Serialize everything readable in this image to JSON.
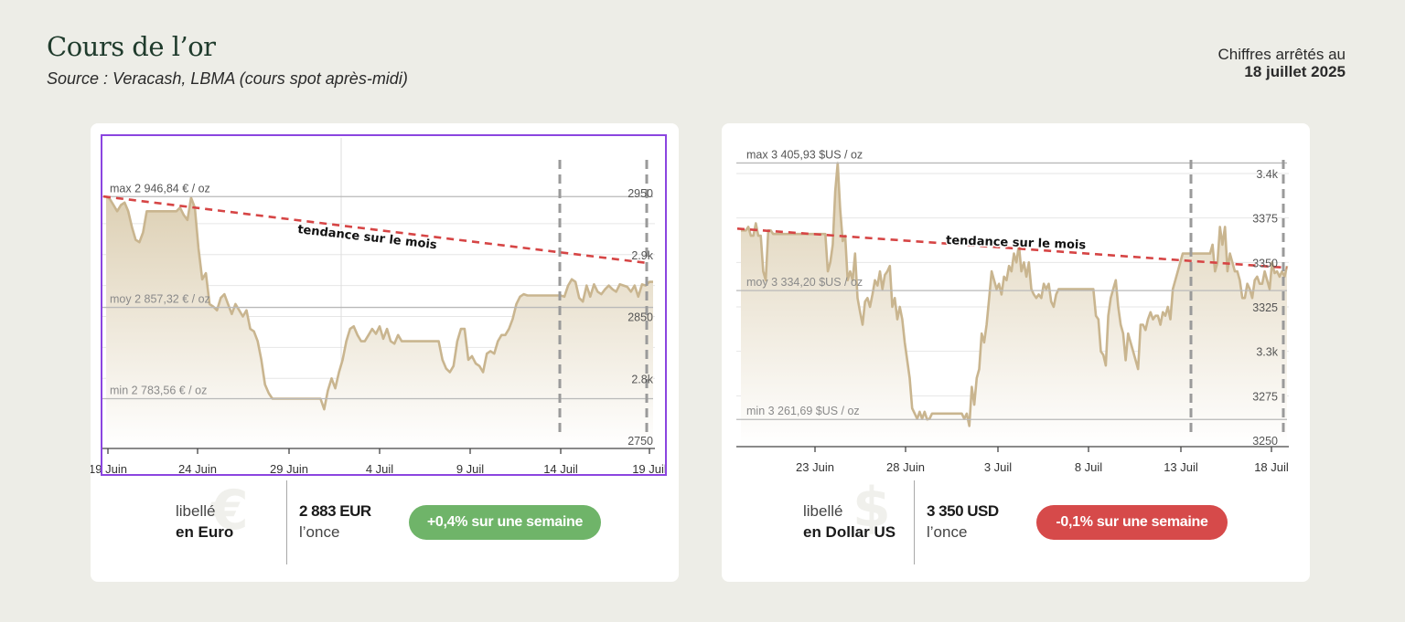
{
  "header": {
    "title": "Cours de l’or",
    "source": "Source : Veracash, LBMA (cours spot après-midi)",
    "date_line1": "Chiffres arrêtés au",
    "date_line2": "18 juillet 2025"
  },
  "colors": {
    "background": "#edede7",
    "line": "#c9b58f",
    "area_top": "#ddd0b4",
    "trend": "#d64545",
    "badge_up": "#6fb469",
    "badge_down": "#d64a4a",
    "selection_frame": "#8b45e0"
  },
  "chart_data": [
    {
      "type": "area",
      "currency": "EUR",
      "x_tick_labels": [
        "19 Juin",
        "24 Juin",
        "29 Juin",
        "4 Juil",
        "9 Juil",
        "14 Juil",
        "19 Juil"
      ],
      "y_tick_labels": [
        "2950",
        "2.9k",
        "2850",
        "2.8k",
        "2750"
      ],
      "ylim": [
        2750,
        2955
      ],
      "annotations": {
        "max": "max 2 946,84 € / oz",
        "moy": "moy 2 857,32 € / oz",
        "min": "min 2 783,56 € / oz",
        "trend": "tendance sur le mois"
      },
      "reference_values": {
        "max": 2946.84,
        "moy": 2857.32,
        "min": 2783.56
      },
      "x_start": "2025-06-19",
      "values": [
        2946.8,
        2945,
        2940,
        2935,
        2940,
        2942,
        2935,
        2922,
        2912,
        2910,
        2918,
        2935,
        2935,
        2935,
        2935,
        2935,
        2935,
        2935,
        2935,
        2935,
        2938,
        2932,
        2928,
        2946,
        2938,
        2905,
        2880,
        2885,
        2860,
        2858,
        2855,
        2865,
        2868,
        2860,
        2852,
        2860,
        2855,
        2850,
        2855,
        2840,
        2838,
        2830,
        2815,
        2795,
        2788,
        2783.6,
        2783.6,
        2783.6,
        2783.6,
        2783.6,
        2783.6,
        2783.6,
        2783.6,
        2783.6,
        2783.6,
        2783.6,
        2783.6,
        2783.6,
        2783.6,
        2775,
        2790,
        2800,
        2792,
        2805,
        2815,
        2830,
        2840,
        2842,
        2835,
        2830,
        2830,
        2835,
        2840,
        2836,
        2842,
        2832,
        2840,
        2830,
        2828,
        2835,
        2830,
        2830,
        2830,
        2830,
        2830,
        2830,
        2830,
        2830,
        2830,
        2830,
        2830,
        2815,
        2808,
        2805,
        2810,
        2830,
        2840,
        2840,
        2815,
        2818,
        2812,
        2810,
        2805,
        2820,
        2822,
        2820,
        2830,
        2835,
        2835,
        2840,
        2848,
        2860,
        2866,
        2868,
        2867,
        2867,
        2867,
        2867,
        2867,
        2867,
        2867,
        2867,
        2867,
        2867,
        2866,
        2875,
        2880,
        2878,
        2865,
        2862,
        2875,
        2866,
        2876,
        2870,
        2868,
        2872,
        2875,
        2872,
        2870,
        2876,
        2875,
        2874,
        2870,
        2875,
        2866,
        2876,
        2875,
        2878,
        2878
      ]
    },
    {
      "type": "area",
      "currency": "USD",
      "x_tick_labels": [
        "23 Juin",
        "28 Juin",
        "3 Juil",
        "8 Juil",
        "13 Juil",
        "18 Juil"
      ],
      "y_tick_labels": [
        "3.4k",
        "3375",
        "3350",
        "3325",
        "3.3k",
        "3275",
        "3250"
      ],
      "ylim": [
        3250,
        3410
      ],
      "annotations": {
        "max": "max 3 405,93 $US / oz",
        "moy": "moy 3 334,20 $US / oz",
        "min": "min 3 261,69 $US / oz",
        "trend": "tendance sur le mois"
      },
      "reference_values": {
        "max": 3405.93,
        "moy": 3334.2,
        "min": 3261.69
      },
      "x_start": "2025-06-18",
      "values": [
        3368,
        3368,
        3368,
        3370,
        3365,
        3365,
        3372,
        3365,
        3365,
        3345,
        3340,
        3368,
        3368,
        3366,
        3366,
        3366,
        3366,
        3366,
        3366,
        3366,
        3366,
        3366,
        3366,
        3366,
        3366,
        3366,
        3366,
        3366,
        3366,
        3366,
        3366,
        3366,
        3366,
        3366,
        3366,
        3345,
        3350,
        3360,
        3390,
        3405.9,
        3380,
        3362,
        3365,
        3340,
        3345,
        3340,
        3355,
        3330,
        3322,
        3315,
        3328,
        3330,
        3325,
        3332,
        3340,
        3337,
        3345,
        3335,
        3343,
        3345,
        3348,
        3325,
        3330,
        3318,
        3325,
        3318,
        3305,
        3295,
        3285,
        3268,
        3265,
        3262,
        3266,
        3262,
        3266,
        3261.7,
        3262,
        3265,
        3265,
        3265,
        3265,
        3265,
        3265,
        3265,
        3265,
        3265,
        3265,
        3265,
        3265,
        3265,
        3262,
        3265,
        3258,
        3280,
        3270,
        3285,
        3290,
        3310,
        3305,
        3315,
        3330,
        3345,
        3340,
        3335,
        3338,
        3332,
        3342,
        3340,
        3348,
        3345,
        3355,
        3350,
        3360,
        3345,
        3350,
        3342,
        3350,
        3335,
        3332,
        3330,
        3332,
        3330,
        3338,
        3335,
        3338,
        3328,
        3325,
        3332,
        3335,
        3335,
        3335,
        3335,
        3335,
        3335,
        3335,
        3335,
        3335,
        3335,
        3335,
        3335,
        3335,
        3335,
        3335,
        3320,
        3318,
        3300,
        3298,
        3292,
        3320,
        3330,
        3335,
        3340,
        3325,
        3315,
        3310,
        3295,
        3310,
        3305,
        3300,
        3295,
        3290,
        3315,
        3315,
        3312,
        3318,
        3322,
        3318,
        3320,
        3320,
        3315,
        3322,
        3320,
        3325,
        3318,
        3335,
        3340,
        3345,
        3350,
        3355,
        3355,
        3355,
        3355,
        3355,
        3355,
        3355,
        3355,
        3355,
        3355,
        3355,
        3355,
        3360,
        3345,
        3350,
        3370,
        3360,
        3370,
        3345,
        3355,
        3350,
        3345,
        3345,
        3340,
        3330,
        3330,
        3338,
        3335,
        3330,
        3340,
        3342,
        3338,
        3338,
        3345,
        3340,
        3335,
        3350,
        3344,
        3345,
        3342,
        3345,
        3342,
        3348
      ]
    }
  ],
  "cards": [
    {
      "symbol": "€",
      "libelle_line1": "libellé",
      "libelle_line2": "en Euro",
      "price_line1": "2 883 EUR",
      "price_line2": "l’once",
      "badge": "+0,4% sur une semaine"
    },
    {
      "symbol": "$",
      "libelle_line1": "libellé",
      "libelle_line2": "en Dollar US",
      "price_line1": "3 350 USD",
      "price_line2": "l’once",
      "badge": "-0,1% sur une semaine"
    }
  ]
}
